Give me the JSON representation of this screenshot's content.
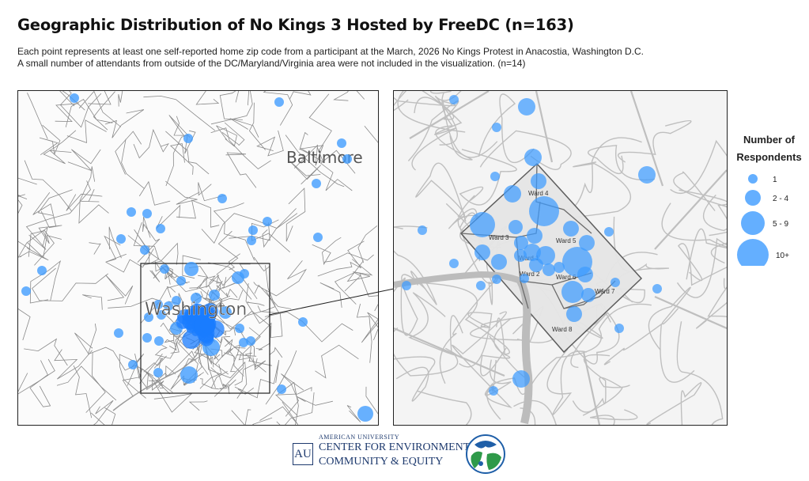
{
  "title": "Geographic Distribution of No Kings 3 Hosted by FreeDC (n=163)",
  "subtitle": {
    "line1": "Each point represents at least one self-reported home zip code from a participant at the March, 2026 No Kings Protest in Anacostia, Washington D.C.",
    "line2": "A small number of attendants from outside of the DC/Maryland/Virginia area were not included in the visualization. (n=14)"
  },
  "colors": {
    "point": "#3d9bff",
    "point_dense": "#1a7cff",
    "boundary": "#6b6b6b",
    "dc_fill": "#e8e8e8",
    "river": "#c8c8c8"
  },
  "left_map": {
    "city_labels": [
      "Baltimore",
      "Washington"
    ]
  },
  "right_map": {
    "wards": [
      "Ward 1",
      "Ward 2",
      "Ward 3",
      "Ward 4",
      "Ward 5",
      "Ward 6",
      "Ward 7",
      "Ward 8"
    ]
  },
  "legend": {
    "title_line1": "Number of",
    "title_line2": "Respondents",
    "items": [
      "1",
      "2 - 4",
      "5 - 9",
      "10+"
    ]
  },
  "logo": {
    "small_text": "AMERICAN UNIVERSITY",
    "line1": "CENTER FOR ENVIRONMENT",
    "line2": "COMMUNITY & EQUITY",
    "monogram": "AU"
  }
}
